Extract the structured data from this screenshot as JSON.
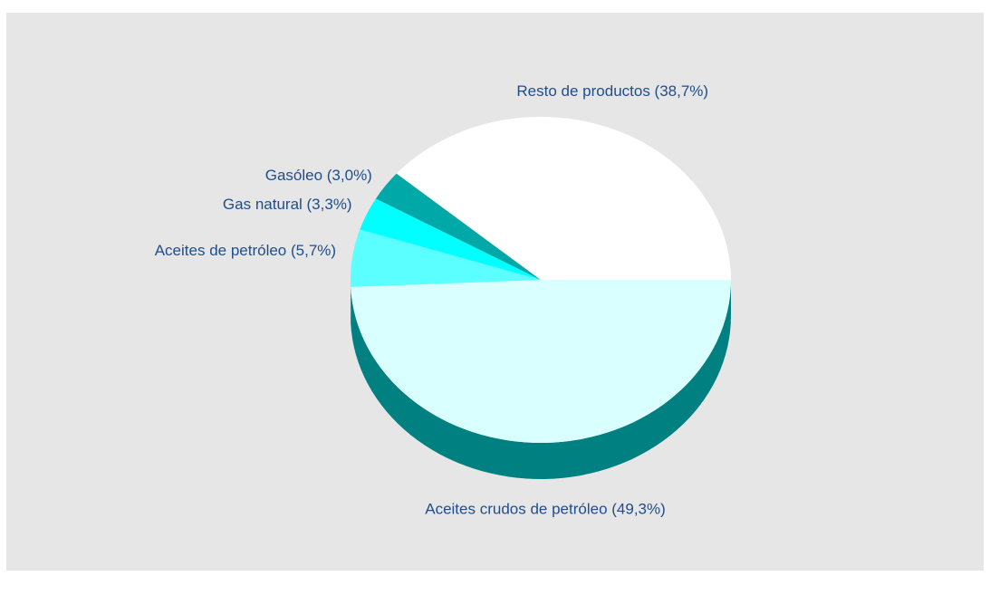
{
  "chart_data": {
    "type": "pie3d",
    "categories": [
      "Aceites crudos de petróleo (49,3%)",
      "Aceites de petróleo (5,7%)",
      "Gas natural (3,3%)",
      "Gasóleo (3,0%)",
      "Resto de productos (38,7%)"
    ],
    "values": [
      49.3,
      5.7,
      3.3,
      3.0,
      38.7
    ],
    "colors": [
      "#d9ffff",
      "#5cffff",
      "#00ffff",
      "#00a8a8",
      "#ffffff"
    ],
    "side_colors": [
      "#008080",
      "#2aa5a5",
      "#00a0a0",
      "#006a6a",
      "#b0b0b0"
    ]
  }
}
